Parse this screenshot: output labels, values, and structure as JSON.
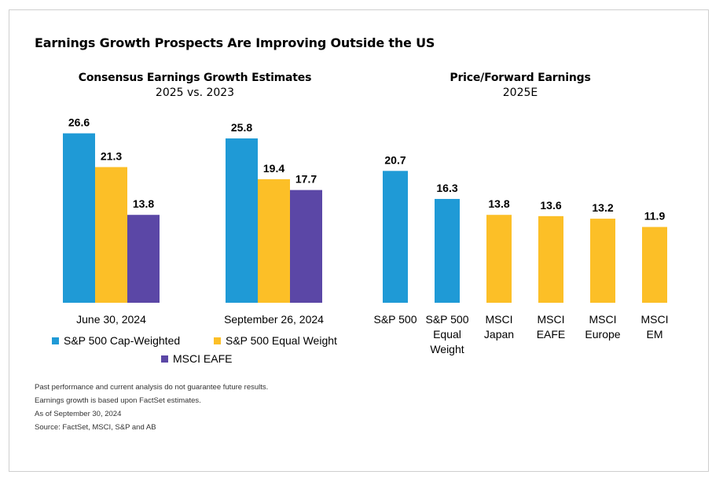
{
  "title": "Earnings Growth Prospects Are Improving Outside the US",
  "colors": {
    "blue": "#1f9ad6",
    "yellow": "#fcbf27",
    "purple": "#5b47a6"
  },
  "left_panel": {
    "title": "Consensus Earnings Growth Estimates",
    "subtitle": "2025 vs. 2023"
  },
  "right_panel": {
    "title": "Price/Forward Earnings",
    "subtitle": "2025E"
  },
  "legend": [
    {
      "label": "S&P 500 Cap-Weighted",
      "color": "#1f9ad6"
    },
    {
      "label": "S&P 500 Equal Weight",
      "color": "#fcbf27"
    },
    {
      "label": "MSCI EAFE",
      "color": "#5b47a6"
    }
  ],
  "notes": [
    "Past performance and current analysis do not guarantee future results.",
    "Earnings growth is based upon FactSet estimates.",
    "As of September 30, 2024",
    "Source: FactSet, MSCI, S&P and AB"
  ],
  "chart_data": [
    {
      "type": "bar",
      "title": "Consensus Earnings Growth Estimates",
      "subtitle": "2025 vs. 2023",
      "categories": [
        "June 30, 2024",
        "September 26, 2024"
      ],
      "series": [
        {
          "name": "S&P 500 Cap-Weighted",
          "values": [
            26.6,
            25.8
          ],
          "color": "#1f9ad6"
        },
        {
          "name": "S&P 500 Equal Weight",
          "values": [
            21.3,
            19.4
          ],
          "color": "#fcbf27"
        },
        {
          "name": "MSCI EAFE",
          "values": [
            13.8,
            17.7
          ],
          "color": "#5b47a6"
        }
      ],
      "data_labels": true,
      "grid": false,
      "legend_position": "bottom"
    },
    {
      "type": "bar",
      "title": "Price/Forward Earnings",
      "subtitle": "2025E",
      "categories": [
        [
          "S&P 500"
        ],
        [
          "S&P 500",
          "Equal",
          "Weight"
        ],
        [
          "MSCI",
          "Japan"
        ],
        [
          "MSCI",
          "EAFE"
        ],
        [
          "MSCI",
          "Europe"
        ],
        [
          "MSCI",
          "EM"
        ]
      ],
      "values": [
        20.7,
        16.3,
        13.8,
        13.6,
        13.2,
        11.9
      ],
      "colors": [
        "#1f9ad6",
        "#1f9ad6",
        "#fcbf27",
        "#fcbf27",
        "#fcbf27",
        "#fcbf27"
      ],
      "data_labels": true,
      "grid": false
    }
  ]
}
